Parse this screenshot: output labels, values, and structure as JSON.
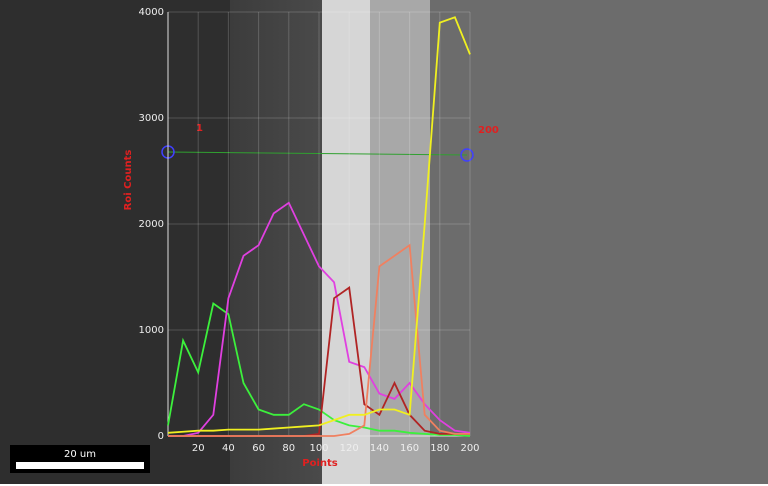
{
  "chart_data": {
    "type": "line",
    "y_label": "Roi Counts",
    "x_label": "Points",
    "annotations": [
      "1",
      "200"
    ],
    "scale_bar": "20 um",
    "x": [
      0,
      10,
      20,
      30,
      40,
      50,
      60,
      70,
      80,
      90,
      100,
      110,
      120,
      130,
      140,
      150,
      160,
      170,
      180,
      190,
      200
    ],
    "xlim": [
      0,
      200
    ],
    "xticks": [
      20,
      40,
      60,
      80,
      100,
      120,
      140,
      160,
      180,
      200
    ],
    "ylim": [
      0,
      4000
    ],
    "yticks": [
      0,
      1000,
      2000,
      3000,
      4000
    ],
    "grid": true,
    "series": [
      {
        "name": "green",
        "color": "#3cf03c",
        "values": [
          100,
          900,
          600,
          1250,
          1150,
          500,
          250,
          200,
          200,
          300,
          250,
          150,
          100,
          80,
          50,
          50,
          30,
          20,
          10,
          10,
          0
        ]
      },
      {
        "name": "magenta",
        "color": "#e040e0",
        "values": [
          0,
          0,
          30,
          200,
          1300,
          1700,
          1800,
          2100,
          2200,
          1900,
          1600,
          1450,
          700,
          650,
          400,
          350,
          500,
          300,
          150,
          50,
          30
        ]
      },
      {
        "name": "dark red",
        "color": "#b02424",
        "values": [
          0,
          0,
          0,
          0,
          0,
          0,
          0,
          0,
          0,
          0,
          20,
          1300,
          1400,
          300,
          200,
          500,
          200,
          50,
          20,
          20,
          20
        ]
      },
      {
        "name": "salmon",
        "color": "#f08060",
        "values": [
          0,
          0,
          0,
          0,
          0,
          0,
          0,
          0,
          0,
          0,
          0,
          0,
          20,
          100,
          1600,
          1700,
          1800,
          200,
          50,
          20,
          20
        ]
      },
      {
        "name": "yellow",
        "color": "#f0f020",
        "values": [
          30,
          40,
          50,
          50,
          60,
          60,
          60,
          70,
          80,
          90,
          100,
          150,
          200,
          200,
          250,
          250,
          200,
          2000,
          3900,
          3950,
          3600
        ]
      }
    ]
  }
}
